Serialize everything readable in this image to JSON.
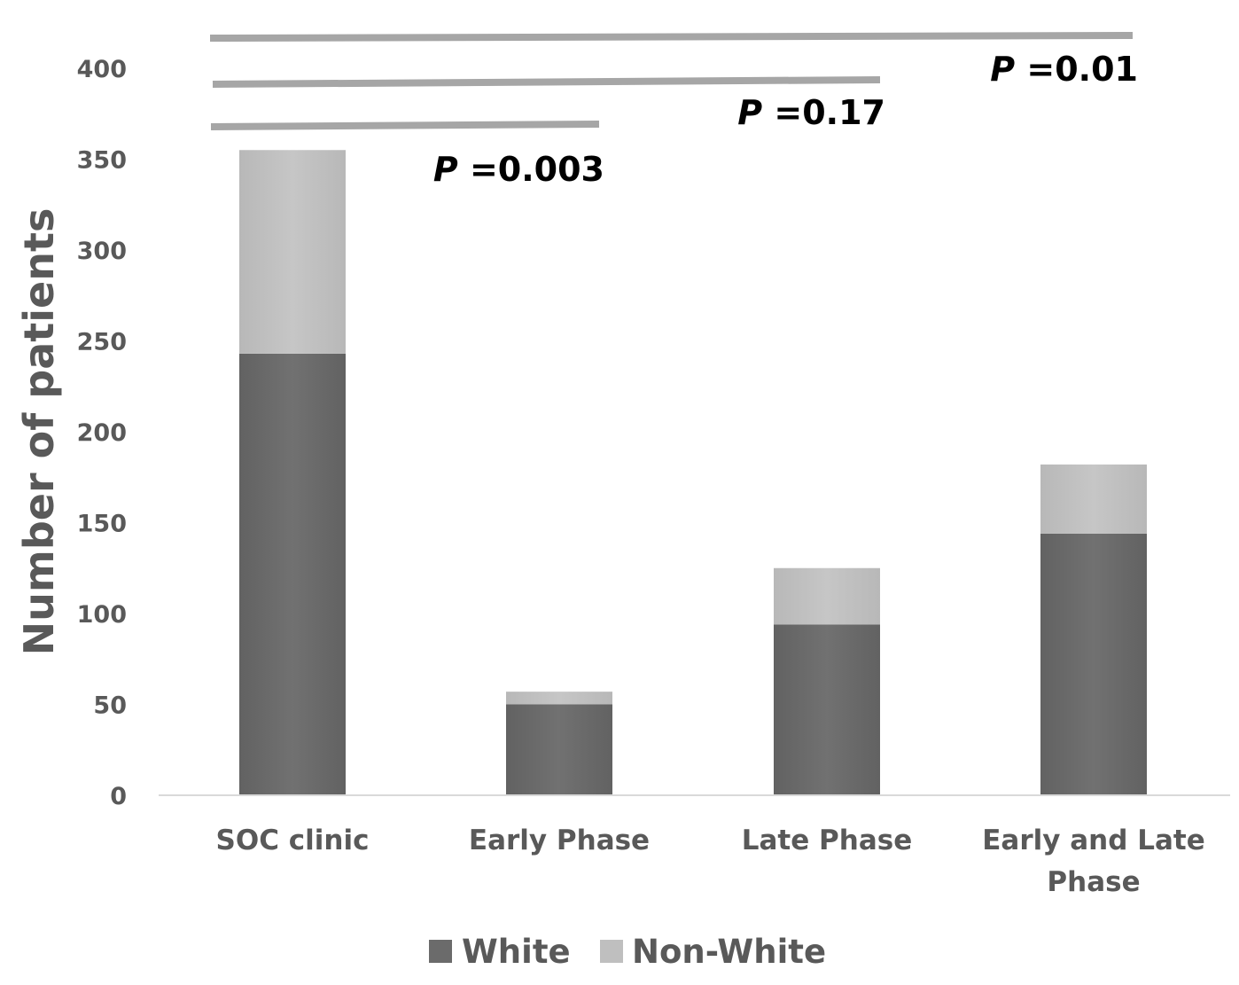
{
  "chart_data": {
    "type": "bar",
    "stacked": true,
    "categories": [
      "SOC clinic",
      "Early Phase",
      "Late Phase",
      "Early and Late Phase"
    ],
    "series": [
      {
        "name": "White",
        "values": [
          243,
          50,
          94,
          144
        ],
        "color": "#6b6b6b"
      },
      {
        "name": "Non-White",
        "values": [
          112,
          7,
          31,
          38
        ],
        "color": "#bfbfbf"
      }
    ],
    "ylabel": "Number of patients",
    "xlabel": "",
    "ylim": [
      0,
      400
    ],
    "yticks": [
      0,
      50,
      100,
      150,
      200,
      250,
      300,
      350,
      400
    ],
    "grid": false,
    "legend": "bottom",
    "annotations": [
      {
        "from": 0,
        "to": 1,
        "prefix": "P",
        "text": "=0.003"
      },
      {
        "from": 0,
        "to": 2,
        "prefix": "P",
        "text": "=0.17"
      },
      {
        "from": 0,
        "to": 3,
        "prefix": "P",
        "text": "=0.01"
      }
    ],
    "bracket_color": "#a6a6a6",
    "axis_color": "#d9d9d9"
  }
}
